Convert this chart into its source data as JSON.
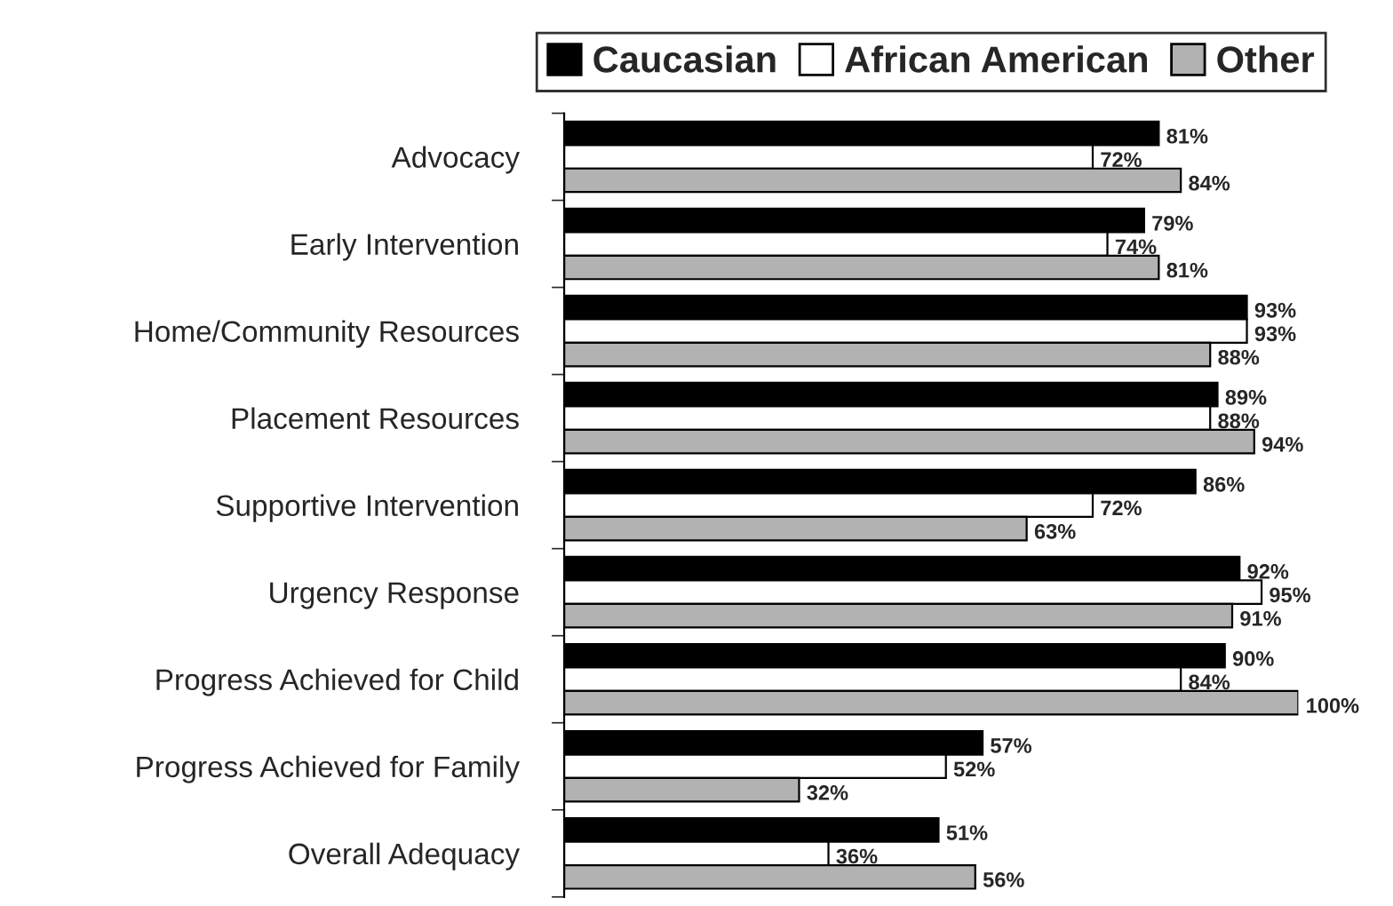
{
  "chart_data": {
    "type": "bar",
    "orientation": "horizontal",
    "categories": [
      "Advocacy",
      "Early Intervention",
      "Home/Community Resources",
      "Placement Resources",
      "Supportive Intervention",
      "Urgency Response",
      "Progress Achieved for Child",
      "Progress Achieved for Family",
      "Overall Adequacy"
    ],
    "series": [
      {
        "name": "Caucasian",
        "color": "#000000",
        "values": [
          81,
          79,
          93,
          89,
          86,
          92,
          90,
          57,
          51
        ],
        "value_labels": [
          "81%",
          "79%",
          "93%",
          "89%",
          "86%",
          "92%",
          "90%",
          "57%",
          "51%"
        ]
      },
      {
        "name": "African American",
        "color": "#ffffff",
        "values": [
          72,
          74,
          93,
          88,
          72,
          95,
          84,
          52,
          36
        ],
        "value_labels": [
          "72%",
          "74%",
          "93%",
          "88%",
          "72%",
          "95%",
          "84%",
          "52%",
          "36%"
        ]
      },
      {
        "name": "Other",
        "color": "#b2b2b2",
        "values": [
          84,
          81,
          88,
          94,
          63,
          91,
          100,
          32,
          56
        ],
        "value_labels": [
          "84%",
          "81%",
          "88%",
          "94%",
          "63%",
          "91%",
          "100%",
          "32%",
          "56%"
        ]
      }
    ],
    "xlim": [
      0,
      100
    ],
    "tick_labels": "y",
    "legend": "top",
    "grid": false
  }
}
